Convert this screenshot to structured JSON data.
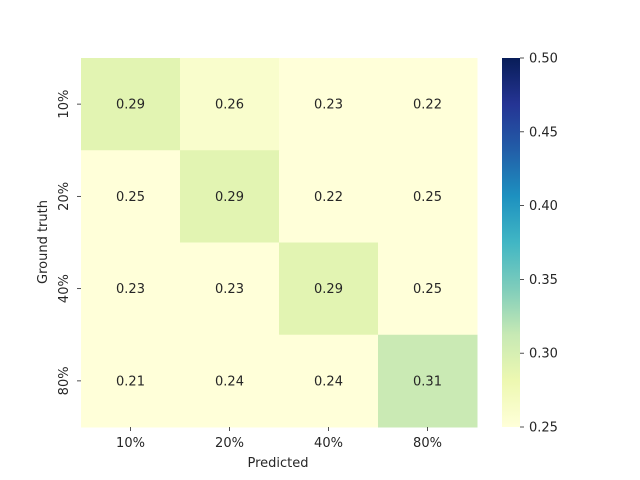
{
  "chart_data": {
    "type": "heatmap",
    "title": "",
    "xlabel": "Predicted",
    "ylabel": "Ground truth",
    "x_categories": [
      "10%",
      "20%",
      "40%",
      "80%"
    ],
    "y_categories": [
      "10%",
      "20%",
      "40%",
      "80%"
    ],
    "values": [
      [
        0.29,
        0.26,
        0.23,
        0.22
      ],
      [
        0.25,
        0.29,
        0.22,
        0.25
      ],
      [
        0.23,
        0.23,
        0.29,
        0.25
      ],
      [
        0.21,
        0.24,
        0.24,
        0.31
      ]
    ],
    "value_range": [
      0.25,
      0.5
    ],
    "colormap": "YlGnBu",
    "colorbar_ticks": [
      "0.25",
      "0.30",
      "0.35",
      "0.40",
      "0.45",
      "0.50"
    ],
    "colorbar_orientation": "vertical, right of heatmap"
  }
}
